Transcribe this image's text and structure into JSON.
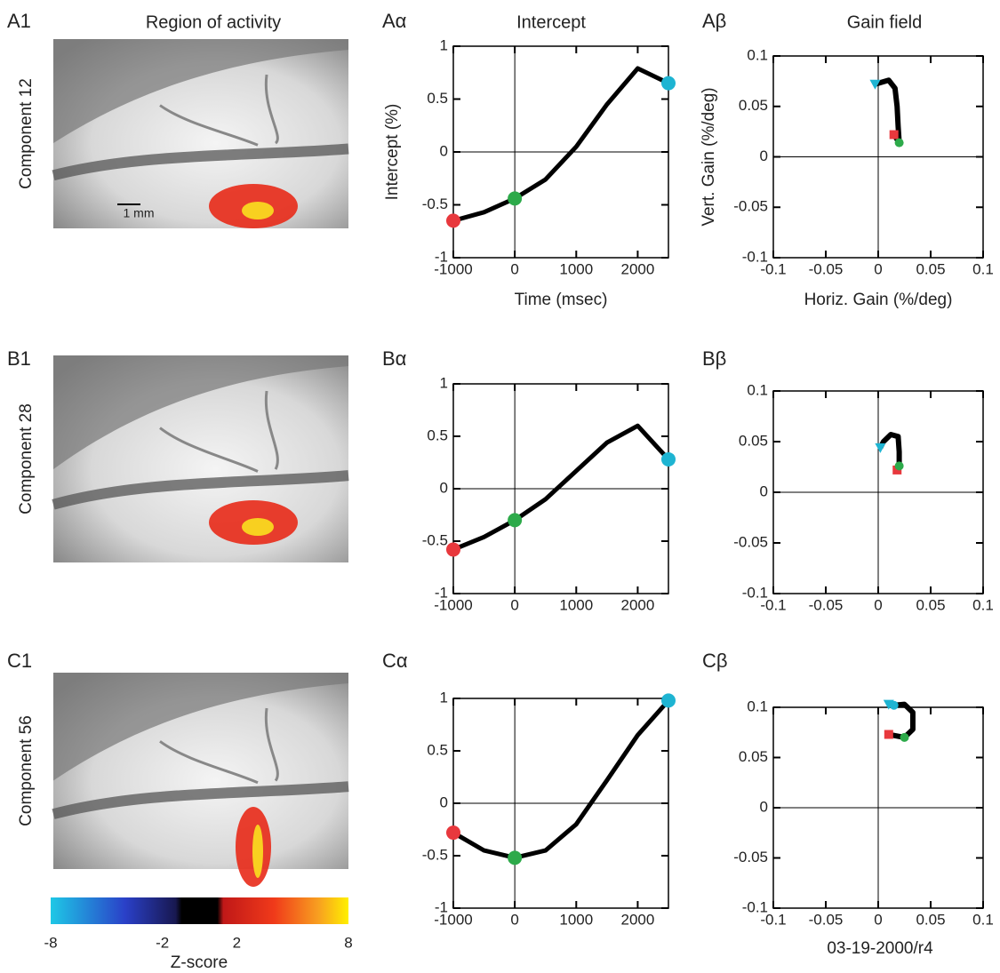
{
  "columns": [
    "Region of activity",
    "Intercept",
    "Gain field"
  ],
  "images": [
    {
      "label": "A1",
      "caption": "Component 12",
      "scale": "1 mm"
    },
    {
      "label": "B1",
      "caption": "Component 28"
    },
    {
      "label": "C1",
      "caption": "Component 56"
    }
  ],
  "colorbar": {
    "lim": [
      -8,
      8
    ],
    "ticks": [
      -8,
      -2,
      2,
      8
    ],
    "label": "Z-score"
  },
  "footer": "03-19-2000/r4",
  "chart_data": [
    {
      "type": "line",
      "label": "Aα",
      "xlabel": "Time (msec)",
      "ylabel": "Intercept (%)",
      "x": [
        -1000,
        -500,
        0,
        500,
        1000,
        1500,
        2000,
        2500
      ],
      "values": [
        -0.65,
        -0.57,
        -0.44,
        -0.26,
        0.05,
        0.45,
        0.79,
        0.65
      ],
      "color": "#000000",
      "marker_colors": [
        "#e8383d",
        null,
        "#2daa4a",
        null,
        null,
        null,
        null,
        "#1eb4d2"
      ],
      "xlim": [
        -1000,
        2500
      ],
      "xticks": [
        -1000,
        0,
        1000,
        2000
      ],
      "ylim": [
        -1,
        1
      ],
      "yticks": [
        -1,
        -0.5,
        0,
        0.5,
        1
      ]
    },
    {
      "type": "trajectory",
      "label": "Aβ",
      "xlabel": "Horiz. Gain (%/deg)",
      "ylabel": "Vert. Gain (%/deg)",
      "x": [
        0.015,
        0.02,
        0.019,
        0.018,
        0.016,
        0.01,
        -0.003
      ],
      "values": [
        0.022,
        0.014,
        0.03,
        0.05,
        0.068,
        0.076,
        0.072
      ],
      "color": "#000000",
      "marker_colors": [
        "#e8383d",
        "#2daa4a",
        null,
        null,
        null,
        null,
        "#1eb4d2"
      ],
      "marker_shapes": [
        "square",
        "circle",
        null,
        null,
        null,
        null,
        "triangle"
      ],
      "xlim": [
        -0.1,
        0.1
      ],
      "xticks": [
        -0.1,
        -0.05,
        0,
        0.05,
        0.1
      ],
      "ylim": [
        -0.1,
        0.1
      ],
      "yticks": [
        -0.1,
        -0.05,
        0,
        0.05,
        0.1
      ]
    },
    {
      "type": "line",
      "label": "Bα",
      "x": [
        -1000,
        -500,
        0,
        500,
        1000,
        1500,
        2000,
        2500
      ],
      "values": [
        -0.58,
        -0.46,
        -0.3,
        -0.1,
        0.17,
        0.44,
        0.6,
        0.28
      ],
      "color": "#000000",
      "marker_colors": [
        "#e8383d",
        null,
        "#2daa4a",
        null,
        null,
        null,
        null,
        "#1eb4d2"
      ],
      "xlim": [
        -1000,
        2500
      ],
      "xticks": [
        -1000,
        0,
        1000,
        2000
      ],
      "ylim": [
        -1,
        1
      ],
      "yticks": [
        -1,
        -0.5,
        0,
        0.5,
        1
      ]
    },
    {
      "type": "trajectory",
      "label": "Bβ",
      "x": [
        0.018,
        0.02,
        0.02,
        0.019,
        0.012,
        0.005,
        0.002
      ],
      "values": [
        0.022,
        0.026,
        0.04,
        0.055,
        0.057,
        0.05,
        0.044
      ],
      "color": "#000000",
      "marker_colors": [
        "#e8383d",
        "#2daa4a",
        null,
        null,
        null,
        null,
        "#1eb4d2"
      ],
      "marker_shapes": [
        "square",
        "circle",
        null,
        null,
        null,
        null,
        "triangle"
      ],
      "xlim": [
        -0.1,
        0.1
      ],
      "xticks": [
        -0.1,
        -0.05,
        0,
        0.05,
        0.1
      ],
      "ylim": [
        -0.1,
        0.1
      ],
      "yticks": [
        -0.1,
        -0.05,
        0,
        0.05,
        0.1
      ]
    },
    {
      "type": "line",
      "label": "Cα",
      "x": [
        -1000,
        -500,
        0,
        500,
        1000,
        1500,
        2000,
        2500
      ],
      "values": [
        -0.28,
        -0.45,
        -0.52,
        -0.45,
        -0.2,
        0.22,
        0.65,
        0.98
      ],
      "color": "#000000",
      "marker_colors": [
        "#e8383d",
        null,
        "#2daa4a",
        null,
        null,
        null,
        null,
        "#1eb4d2"
      ],
      "xlim": [
        -1000,
        2500
      ],
      "xticks": [
        -1000,
        0,
        1000,
        2000
      ],
      "ylim": [
        -1,
        1
      ],
      "yticks": [
        -1,
        -0.5,
        0,
        0.5,
        1
      ]
    },
    {
      "type": "trajectory",
      "label": "Cβ",
      "x": [
        0.01,
        0.025,
        0.033,
        0.033,
        0.025,
        0.015,
        0.01
      ],
      "values": [
        0.073,
        0.07,
        0.078,
        0.095,
        0.103,
        0.102,
        0.103
      ],
      "color": "#000000",
      "marker_colors": [
        "#e8383d",
        "#2daa4a",
        null,
        null,
        null,
        "#1eb4d2",
        "#1eb4d2"
      ],
      "marker_shapes": [
        "square",
        "circle",
        null,
        null,
        null,
        "circle",
        "triangle"
      ],
      "xlim": [
        -0.1,
        0.1
      ],
      "xticks": [
        -0.1,
        -0.05,
        0,
        0.05,
        0.1
      ],
      "ylim": [
        -0.1,
        0.1
      ],
      "yticks": [
        -0.1,
        -0.05,
        0,
        0.05,
        0.1
      ]
    }
  ]
}
